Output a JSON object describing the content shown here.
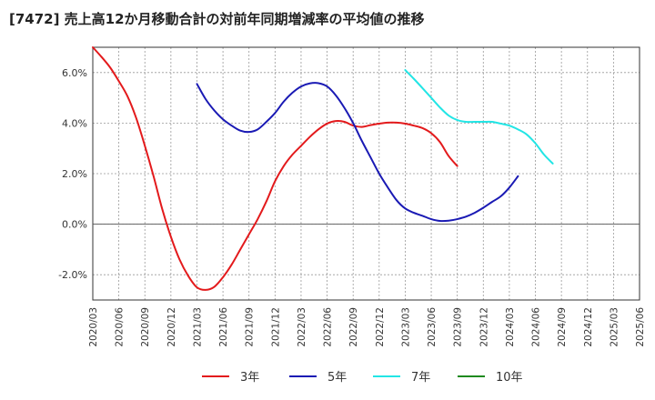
{
  "chart_data": {
    "type": "line",
    "title": "[7472]  売上高12か月移動合計の対前年同期増減率の平均値の推移",
    "xlabel": "",
    "ylabel": "",
    "ylim": [
      -3.0,
      7.0
    ],
    "yticks": [
      -2.0,
      0.0,
      2.0,
      4.0,
      6.0
    ],
    "ytick_labels": [
      "-2.0%",
      "0.0%",
      "2.0%",
      "4.0%",
      "6.0%"
    ],
    "x_ticks": [
      "2020/03",
      "2020/06",
      "2020/09",
      "2020/12",
      "2021/03",
      "2021/06",
      "2021/09",
      "2021/12",
      "2022/03",
      "2022/06",
      "2022/09",
      "2022/12",
      "2023/03",
      "2023/06",
      "2023/09",
      "2023/12",
      "2024/03",
      "2024/06",
      "2024/09",
      "2024/12",
      "2025/03",
      "2025/06"
    ],
    "grid": true,
    "legend_position": "bottom",
    "series": [
      {
        "name": "3年",
        "color": "#e31a1c",
        "start_index": 0,
        "values": [
          7.0,
          6.62,
          6.2,
          5.66,
          5.06,
          4.2,
          3.1,
          1.9,
          0.6,
          -0.5,
          -1.4,
          -2.05,
          -2.5,
          -2.6,
          -2.48,
          -2.1,
          -1.6,
          -1.0,
          -0.4,
          0.2,
          0.9,
          1.7,
          2.3,
          2.75,
          3.1,
          3.45,
          3.75,
          3.98,
          4.08,
          4.05,
          3.9,
          3.85,
          3.92,
          3.98,
          4.02,
          4.02,
          3.98,
          3.9,
          3.8,
          3.6,
          3.25,
          2.7,
          2.3
        ]
      },
      {
        "name": "5年",
        "color": "#1a1ab4",
        "start_index": 12,
        "values": [
          5.55,
          4.95,
          4.5,
          4.15,
          3.9,
          3.7,
          3.65,
          3.75,
          4.05,
          4.4,
          4.85,
          5.2,
          5.45,
          5.57,
          5.58,
          5.45,
          5.1,
          4.6,
          4.0,
          3.3,
          2.65,
          2.0,
          1.45,
          0.95,
          0.62,
          0.45,
          0.33,
          0.2,
          0.13,
          0.14,
          0.2,
          0.3,
          0.45,
          0.65,
          0.88,
          1.1,
          1.45,
          1.9
        ]
      },
      {
        "name": "7年",
        "color": "#22e5e5",
        "start_index": 36,
        "values": [
          6.1,
          5.75,
          5.38,
          5.0,
          4.62,
          4.3,
          4.12,
          4.05,
          4.05,
          4.05,
          4.05,
          3.98,
          3.9,
          3.75,
          3.55,
          3.2,
          2.75,
          2.4
        ]
      },
      {
        "name": "10年",
        "color": "#1f8a1f",
        "start_index": 0,
        "values": []
      }
    ]
  }
}
